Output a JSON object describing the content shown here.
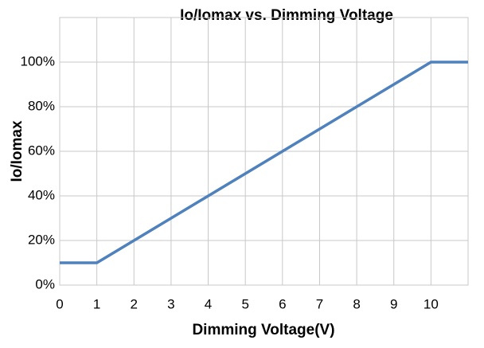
{
  "chart_data": {
    "type": "line",
    "title": "Io/Iomax vs. Dimming Voltage",
    "x_label": "Dimming Voltage(V)",
    "y_label": "Io/Iomax",
    "x": [
      0,
      1,
      10,
      11
    ],
    "series": [
      {
        "name": "Io/Iomax",
        "color": "#4f81bd",
        "values": [
          10,
          10,
          100,
          100
        ]
      }
    ],
    "xlim": [
      0,
      11
    ],
    "xticks": [
      0,
      1,
      2,
      3,
      4,
      5,
      6,
      7,
      8,
      9,
      10
    ],
    "ylim": [
      0,
      120
    ],
    "yticks": [
      {
        "value": 0,
        "label": "0%"
      },
      {
        "value": 20,
        "label": "20%"
      },
      {
        "value": 40,
        "label": "40%"
      },
      {
        "value": 60,
        "label": "60%"
      },
      {
        "value": 80,
        "label": "80%"
      },
      {
        "value": 100,
        "label": "100%"
      }
    ],
    "grid": true
  }
}
